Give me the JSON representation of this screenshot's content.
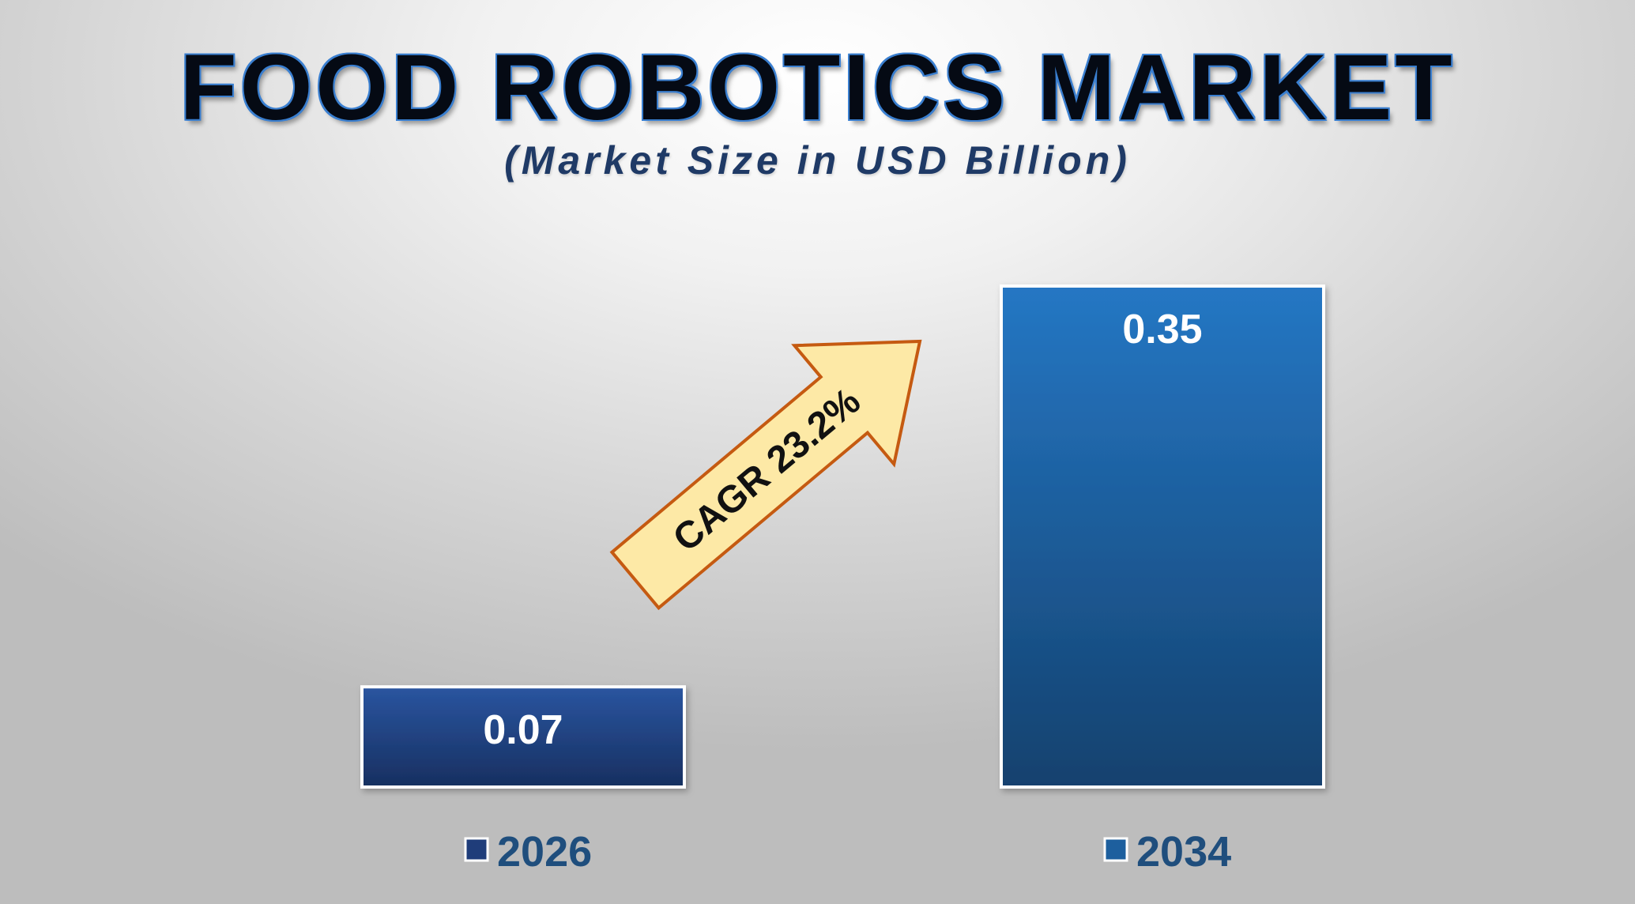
{
  "header": {
    "title": "FOOD ROBOTICS MARKET",
    "subtitle": "(Market Size in USD Billion)"
  },
  "chart_data": {
    "type": "bar",
    "categories": [
      "2026",
      "2034"
    ],
    "values": [
      0.07,
      0.35
    ],
    "value_labels": [
      "0.07",
      "0.35"
    ],
    "title": "FOOD ROBOTICS MARKET",
    "subtitle": "(Market Size in USD Billion)",
    "xlabel": "",
    "ylabel": "",
    "ylim": [
      0,
      0.35
    ],
    "grid": false,
    "legend": "bottom",
    "series_colors": [
      "#1f3d7a",
      "#1d5f9e"
    ],
    "annotation": {
      "text": "CAGR 23.2%",
      "shape": "arrow-up-right",
      "fill": "#fde9a6",
      "stroke": "#c55a11"
    }
  },
  "colors": {
    "title_outline": "#3a7fd0",
    "subtitle": "#1f3a66",
    "category_label": "#1f4e7d",
    "bar_border": "#ffffff"
  }
}
